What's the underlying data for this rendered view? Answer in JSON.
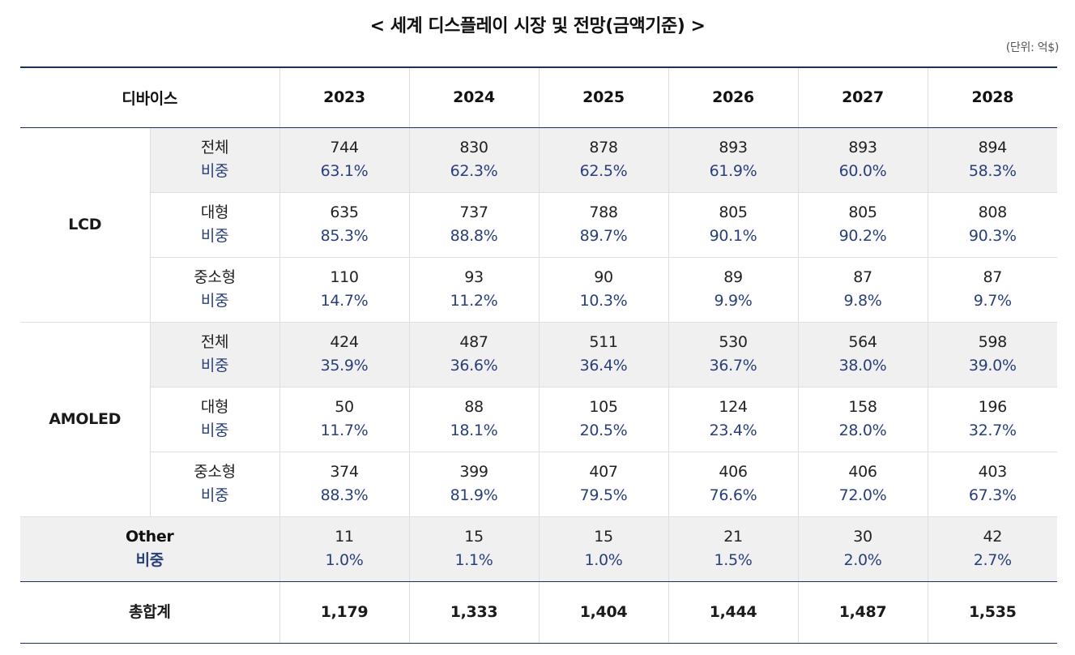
{
  "title": "< 세계 디스플레이 시장 및 전망(금액기준) >",
  "unit_note": "(단위: 억$)",
  "header": {
    "device_label": "디바이스",
    "years": [
      "2023",
      "2024",
      "2025",
      "2026",
      "2027",
      "2028"
    ]
  },
  "lcd": {
    "label": "LCD",
    "rows": [
      {
        "name": "전체",
        "ratio_label": "비중",
        "values": [
          "744",
          "830",
          "878",
          "893",
          "893",
          "894"
        ],
        "shares": [
          "63.1%",
          "62.3%",
          "62.5%",
          "61.9%",
          "60.0%",
          "58.3%"
        ]
      },
      {
        "name": "대형",
        "ratio_label": "비중",
        "values": [
          "635",
          "737",
          "788",
          "805",
          "805",
          "808"
        ],
        "shares": [
          "85.3%",
          "88.8%",
          "89.7%",
          "90.1%",
          "90.2%",
          "90.3%"
        ]
      },
      {
        "name": "중소형",
        "ratio_label": "비중",
        "values": [
          "110",
          "93",
          "90",
          "89",
          "87",
          "87"
        ],
        "shares": [
          "14.7%",
          "11.2%",
          "10.3%",
          "9.9%",
          "9.8%",
          "9.7%"
        ]
      }
    ]
  },
  "amoled": {
    "label": "AMOLED",
    "rows": [
      {
        "name": "전체",
        "ratio_label": "비중",
        "values": [
          "424",
          "487",
          "511",
          "530",
          "564",
          "598"
        ],
        "shares": [
          "35.9%",
          "36.6%",
          "36.4%",
          "36.7%",
          "38.0%",
          "39.0%"
        ]
      },
      {
        "name": "대형",
        "ratio_label": "비중",
        "values": [
          "50",
          "88",
          "105",
          "124",
          "158",
          "196"
        ],
        "shares": [
          "11.7%",
          "18.1%",
          "20.5%",
          "23.4%",
          "28.0%",
          "32.7%"
        ]
      },
      {
        "name": "중소형",
        "ratio_label": "비중",
        "values": [
          "374",
          "399",
          "407",
          "406",
          "406",
          "403"
        ],
        "shares": [
          "88.3%",
          "81.9%",
          "79.5%",
          "76.6%",
          "72.0%",
          "67.3%"
        ]
      }
    ]
  },
  "other": {
    "name": "Other",
    "ratio_label": "비중",
    "values": [
      "11",
      "15",
      "15",
      "21",
      "30",
      "42"
    ],
    "shares": [
      "1.0%",
      "1.1%",
      "1.0%",
      "1.5%",
      "2.0%",
      "2.7%"
    ]
  },
  "total": {
    "label": "총합계",
    "values": [
      "1,179",
      "1,333",
      "1,404",
      "1,444",
      "1,487",
      "1,535"
    ]
  }
}
